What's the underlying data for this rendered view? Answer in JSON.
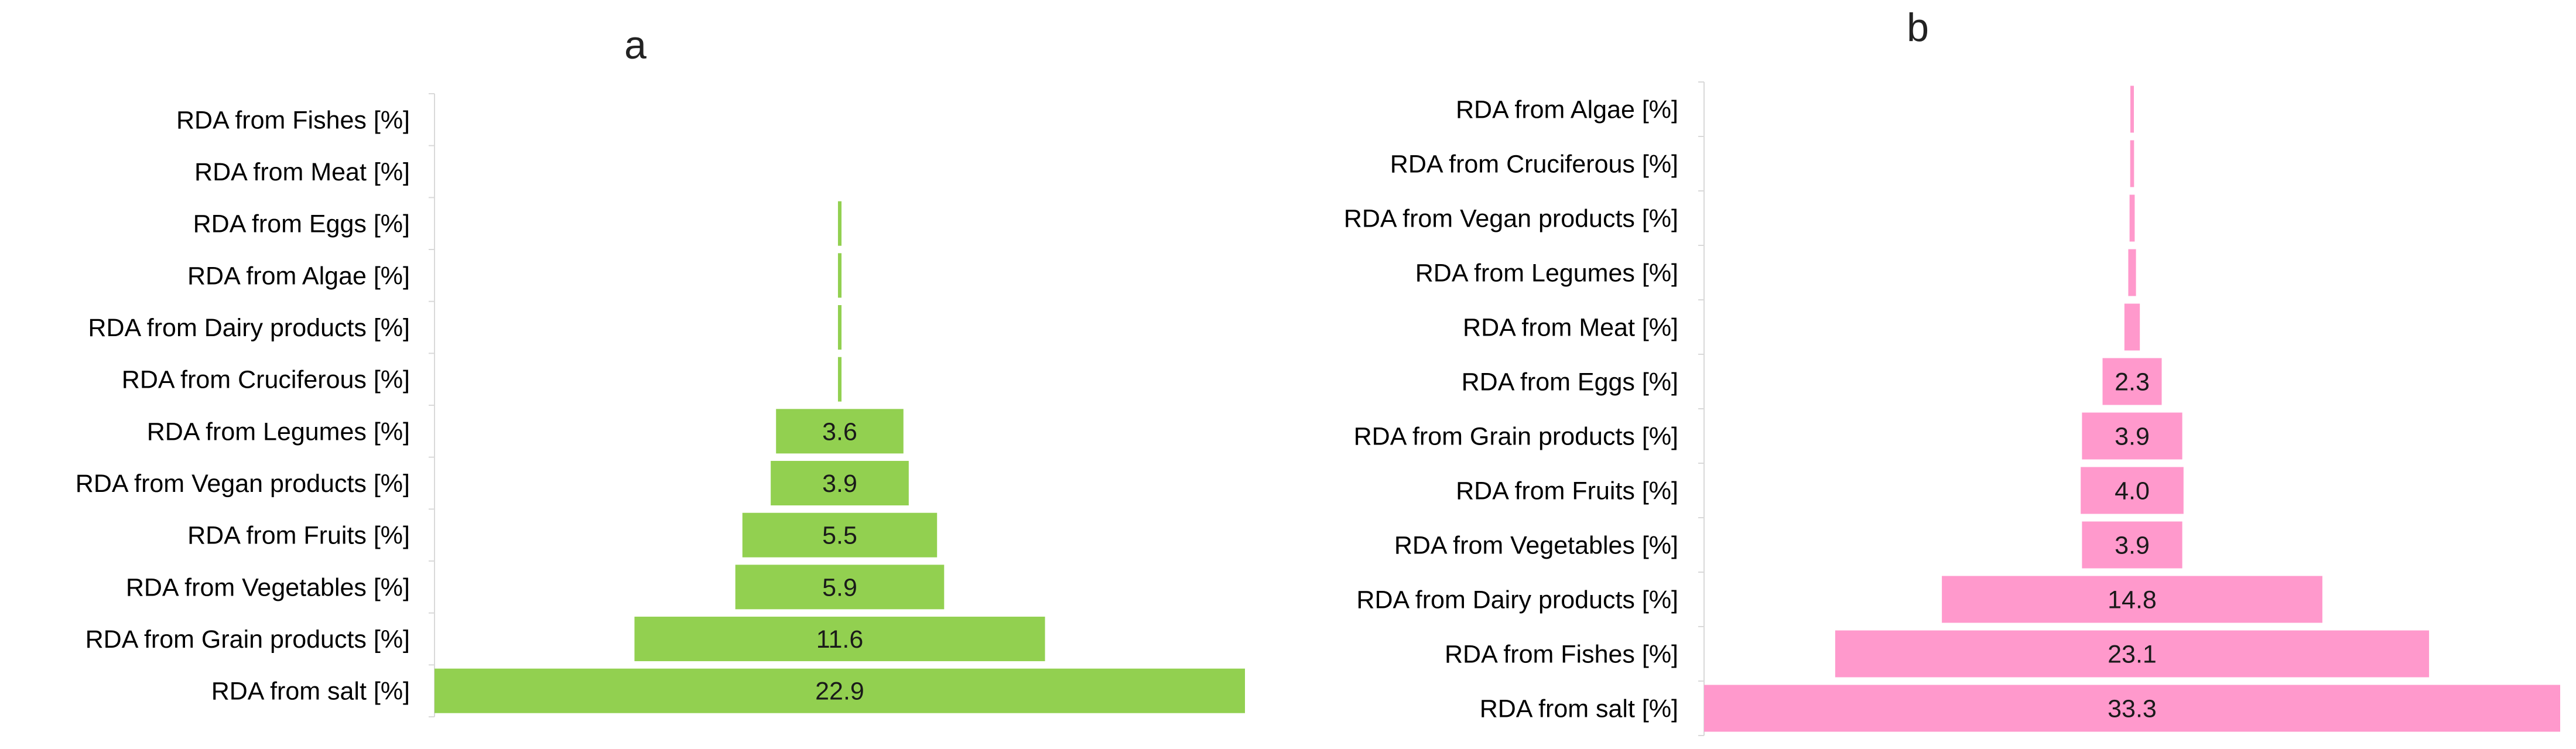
{
  "chart_data": [
    {
      "type": "bar",
      "orientation": "horizontal-centered",
      "title": "a",
      "color": "#92d050",
      "categories": [
        "RDA from Fishes [%]",
        "RDA from Meat [%]",
        "RDA from Eggs [%]",
        "RDA from Algae [%]",
        "RDA from Dairy products [%]",
        "RDA from Cruciferous [%]",
        "RDA from Legumes [%]",
        "RDA from Vegan products [%]",
        "RDA from Fruits [%]",
        "RDA from Vegetables [%]",
        "RDA from Grain products [%]",
        "RDA from salt [%]"
      ],
      "values": [
        0,
        0,
        0.1,
        0.1,
        0.1,
        0.1,
        3.6,
        3.9,
        5.5,
        5.9,
        11.6,
        22.9
      ],
      "labels": [
        "",
        "",
        "",
        "",
        "",
        "",
        "3.6",
        "3.9",
        "5.5",
        "5.9",
        "11.6",
        "22.9"
      ],
      "xlabel": "",
      "ylabel": "",
      "xlim": [
        0,
        22.9
      ]
    },
    {
      "type": "bar",
      "orientation": "horizontal-centered",
      "title": "b",
      "color": "#ff99cc",
      "categories": [
        "RDA from Algae [%]",
        "RDA from Cruciferous [%]",
        "RDA from Vegan products [%]",
        "RDA from Legumes [%]",
        "RDA from Meat [%]",
        "RDA from Eggs [%]",
        "RDA from Grain products [%]",
        "RDA from Fruits [%]",
        "RDA from Vegetables [%]",
        "RDA from Dairy products [%]",
        "RDA from Fishes [%]",
        "RDA from salt [%]"
      ],
      "values": [
        0.1,
        0.15,
        0.2,
        0.3,
        0.6,
        2.3,
        3.9,
        4.0,
        3.9,
        14.8,
        23.1,
        33.3
      ],
      "labels": [
        "",
        "",
        "",
        "",
        "",
        "2.3",
        "3.9",
        "4.0",
        "3.9",
        "14.8",
        "23.1",
        "33.3"
      ],
      "xlabel": "",
      "ylabel": "",
      "xlim": [
        0,
        33.3
      ]
    }
  ]
}
